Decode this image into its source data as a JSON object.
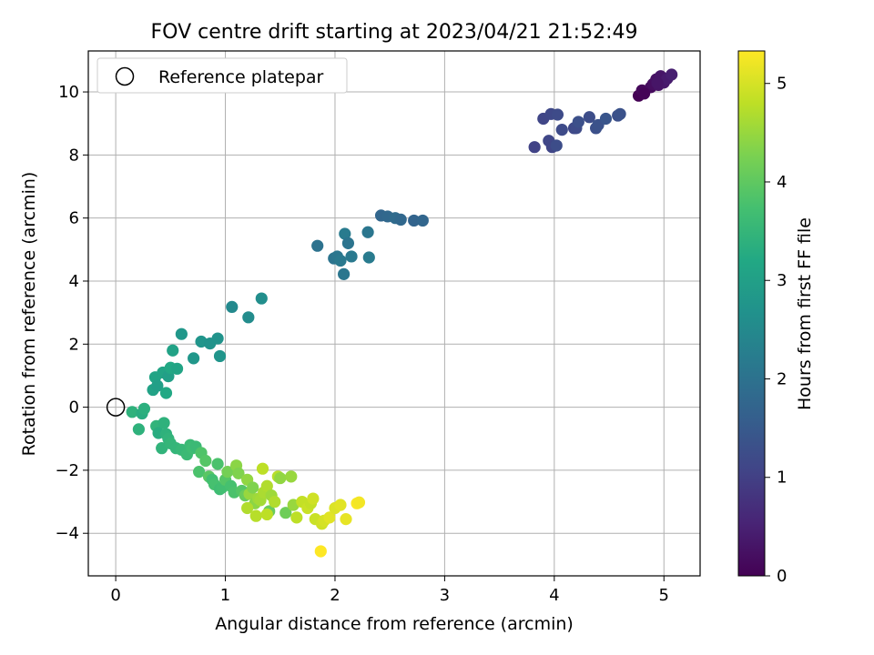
{
  "chart_data": {
    "type": "scatter",
    "title": "FOV centre drift starting at 2023/04/21 21:52:49",
    "xlabel": "Angular distance from reference (arcmin)",
    "ylabel": "Rotation from reference (arcmin)",
    "xlim": [
      -0.25,
      5.33
    ],
    "ylim": [
      -5.35,
      11.3
    ],
    "xticks": [
      0,
      1,
      2,
      3,
      4,
      5
    ],
    "yticks": [
      -4,
      -2,
      0,
      2,
      4,
      6,
      8,
      10
    ],
    "xtick_labels": [
      "0",
      "1",
      "2",
      "3",
      "4",
      "5"
    ],
    "ytick_labels": [
      "−4",
      "−2",
      "0",
      "2",
      "4",
      "6",
      "8",
      "10"
    ],
    "grid": true,
    "legend": {
      "position": "top-left",
      "entries": [
        {
          "label": "Reference platepar",
          "marker": "open-circle"
        }
      ]
    },
    "reference_point": {
      "x": 0,
      "y": 0
    },
    "colorbar": {
      "label": "Hours from first FF file",
      "colormap": "viridis",
      "range": [
        0,
        5.33
      ],
      "ticks": [
        0,
        1,
        2,
        3,
        4,
        5
      ],
      "tick_labels": [
        "0",
        "1",
        "2",
        "3",
        "4",
        "5"
      ]
    },
    "x": [
      4.77,
      4.8,
      4.88,
      4.9,
      4.93,
      4.97,
      4.95,
      5.0,
      5.03,
      5.07,
      4.94,
      4.82,
      3.82,
      3.9,
      3.97,
      4.03,
      3.95,
      3.98,
      4.02,
      4.07,
      4.18,
      4.2,
      4.22,
      4.32,
      4.38,
      4.4,
      4.47,
      4.58,
      4.6,
      1.84,
      1.99,
      2.02,
      2.05,
      2.08,
      2.09,
      2.12,
      2.15,
      2.3,
      2.31,
      2.42,
      2.48,
      2.55,
      2.6,
      2.72,
      2.8,
      1.06,
      1.21,
      1.33,
      0.6,
      0.71,
      0.78,
      0.86,
      0.93,
      0.95,
      0.34,
      0.36,
      0.38,
      0.43,
      0.46,
      0.48,
      0.5,
      0.52,
      0.56,
      0.15,
      0.21,
      0.24,
      0.26,
      0.37,
      0.39,
      0.42,
      0.44,
      0.46,
      0.48,
      0.5,
      0.55,
      0.6,
      0.65,
      0.68,
      0.7,
      0.73,
      0.76,
      0.78,
      0.82,
      0.85,
      0.88,
      0.9,
      0.93,
      0.95,
      0.97,
      1.0,
      1.02,
      1.05,
      1.08,
      1.1,
      1.12,
      1.15,
      1.18,
      1.2,
      1.22,
      1.25,
      1.27,
      1.3,
      1.32,
      1.35,
      1.38,
      1.4,
      1.42,
      1.45,
      1.48,
      1.5,
      1.55,
      1.6,
      1.62,
      1.2,
      1.28,
      1.34,
      1.38,
      1.65,
      1.7,
      1.75,
      1.78,
      1.8,
      1.82,
      1.88,
      1.9,
      1.95,
      2.0,
      2.05,
      2.1,
      2.2,
      2.22,
      1.87
    ],
    "y": [
      9.88,
      10.05,
      10.15,
      10.25,
      10.4,
      10.5,
      10.22,
      10.3,
      10.42,
      10.55,
      10.28,
      9.95,
      8.25,
      9.15,
      9.3,
      9.28,
      8.45,
      8.25,
      8.3,
      8.8,
      8.85,
      8.85,
      9.05,
      9.2,
      8.85,
      8.95,
      9.15,
      9.25,
      9.3,
      5.12,
      4.72,
      4.78,
      4.65,
      4.22,
      5.5,
      5.2,
      4.78,
      5.55,
      4.75,
      6.08,
      6.05,
      6.0,
      5.95,
      5.92,
      5.92,
      3.18,
      2.85,
      3.45,
      2.32,
      1.55,
      2.08,
      2.02,
      2.18,
      1.62,
      0.55,
      0.95,
      0.68,
      1.1,
      0.45,
      0.98,
      1.25,
      1.8,
      1.22,
      -0.15,
      -0.7,
      -0.2,
      -0.05,
      -0.6,
      -0.82,
      -1.3,
      -0.5,
      -0.85,
      -1.0,
      -1.15,
      -1.3,
      -1.35,
      -1.5,
      -1.2,
      -1.3,
      -1.25,
      -2.05,
      -1.45,
      -1.7,
      -2.2,
      -2.3,
      -2.45,
      -1.8,
      -2.6,
      -2.55,
      -2.3,
      -2.05,
      -2.5,
      -2.7,
      -1.85,
      -2.1,
      -2.65,
      -2.8,
      -2.3,
      -2.75,
      -2.55,
      -3.05,
      -2.9,
      -2.95,
      -2.7,
      -2.5,
      -3.3,
      -2.8,
      -3.0,
      -2.2,
      -2.25,
      -3.35,
      -2.2,
      -3.1,
      -3.2,
      -3.45,
      -1.95,
      -3.4,
      -3.5,
      -3.0,
      -3.2,
      -3.05,
      -2.9,
      -3.55,
      -3.7,
      -3.6,
      -3.5,
      -3.2,
      -3.1,
      -3.55,
      -3.05,
      -3.02,
      -4.57
    ],
    "hours": [
      0.0,
      0.1,
      0.15,
      0.2,
      0.25,
      0.3,
      0.28,
      0.35,
      0.4,
      0.45,
      0.3,
      0.05,
      1.05,
      1.1,
      1.15,
      1.2,
      1.12,
      1.1,
      1.25,
      1.2,
      1.15,
      1.2,
      1.3,
      1.25,
      1.3,
      1.35,
      1.4,
      1.3,
      1.35,
      2.0,
      2.05,
      2.1,
      2.15,
      2.1,
      2.2,
      2.05,
      2.15,
      2.1,
      2.2,
      1.75,
      1.8,
      1.85,
      1.8,
      1.7,
      1.75,
      2.5,
      2.55,
      2.6,
      2.8,
      2.8,
      2.75,
      2.7,
      2.7,
      2.75,
      3.05,
      3.1,
      3.0,
      3.1,
      3.2,
      3.0,
      3.2,
      3.05,
      3.1,
      3.4,
      3.4,
      3.3,
      3.35,
      3.45,
      3.3,
      3.45,
      3.4,
      3.4,
      3.45,
      3.5,
      3.5,
      3.55,
      3.6,
      3.6,
      3.65,
      3.6,
      3.8,
      3.85,
      3.9,
      3.95,
      3.7,
      3.75,
      3.8,
      3.65,
      3.7,
      3.9,
      4.2,
      3.75,
      3.8,
      4.4,
      4.3,
      3.9,
      4.1,
      4.45,
      4.5,
      4.3,
      4.4,
      4.55,
      4.6,
      4.65,
      4.7,
      4.1,
      4.55,
      4.7,
      4.75,
      4.45,
      4.15,
      4.5,
      4.5,
      4.7,
      4.75,
      4.8,
      4.8,
      4.8,
      4.85,
      4.9,
      4.85,
      4.95,
      4.9,
      4.95,
      5.0,
      5.1,
      5.05,
      5.1,
      5.15,
      5.3,
      5.25,
      5.33
    ]
  }
}
